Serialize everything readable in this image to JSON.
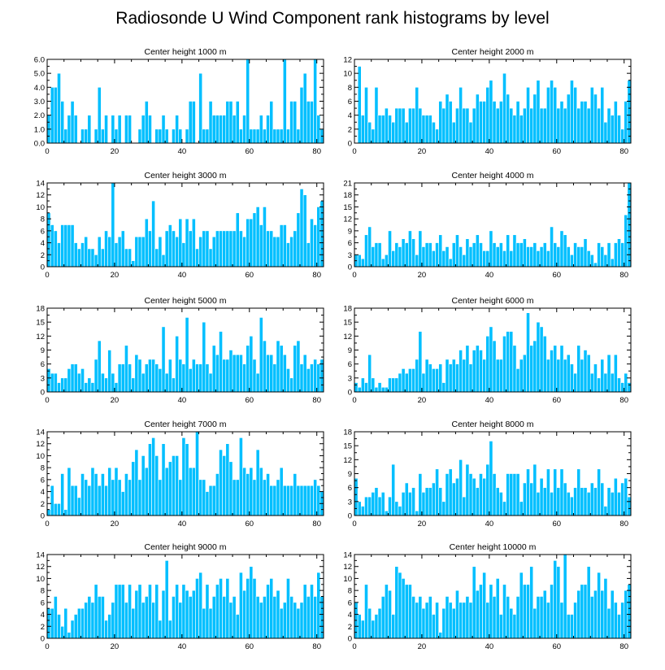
{
  "figure": {
    "title": "Radiosonde U Wind Component rank histograms by level"
  },
  "colors": {
    "bar": "#00bfff",
    "bar_edge": "#ffffff",
    "axis": "#000000",
    "background": "#ffffff"
  },
  "chart_data": [
    {
      "type": "bar",
      "title": "Center height 1000 m",
      "xlim": [
        0,
        82
      ],
      "ylim": [
        0,
        6
      ],
      "xticks": [
        0,
        20,
        40,
        60,
        80
      ],
      "yticks": [
        0,
        1,
        2,
        3,
        4,
        5,
        6
      ],
      "ytick_labels": [
        "0.0",
        "1.0",
        "2.0",
        "3.0",
        "4.0",
        "5.0",
        "6.0"
      ],
      "values": [
        2,
        4,
        4,
        5,
        3,
        1,
        2,
        3,
        2,
        0,
        1,
        1,
        2,
        0,
        1,
        4,
        1,
        2,
        0,
        2,
        1,
        2,
        0,
        2,
        2,
        0,
        0,
        1,
        2,
        3,
        2,
        0,
        1,
        1,
        2,
        1,
        0,
        1,
        2,
        1,
        0,
        1,
        3,
        3,
        0,
        5,
        1,
        1,
        3,
        2,
        2,
        2,
        2,
        3,
        3,
        2,
        3,
        1,
        2,
        6,
        1,
        1,
        1,
        2,
        1,
        2,
        3,
        1,
        1,
        1,
        6,
        1,
        3,
        3,
        1,
        4,
        5,
        3,
        3,
        6,
        2,
        1
      ]
    },
    {
      "type": "bar",
      "title": "Center height 2000 m",
      "xlim": [
        0,
        82
      ],
      "ylim": [
        0,
        12
      ],
      "xticks": [
        0,
        20,
        40,
        60,
        80
      ],
      "yticks": [
        0,
        2,
        4,
        6,
        8,
        10,
        12
      ],
      "ytick_labels": [
        "0",
        "2",
        "4",
        "6",
        "8",
        "10",
        "12"
      ],
      "values": [
        0,
        11,
        4,
        8,
        3,
        2,
        8,
        4,
        4,
        5,
        4,
        3,
        5,
        5,
        5,
        3,
        5,
        5,
        8,
        5,
        4,
        4,
        4,
        3,
        2,
        6,
        5,
        7,
        6,
        3,
        5,
        8,
        5,
        5,
        3,
        5,
        7,
        6,
        6,
        8,
        9,
        6,
        5,
        6,
        10,
        7,
        5,
        4,
        6,
        4,
        5,
        8,
        5,
        7,
        9,
        5,
        5,
        8,
        9,
        8,
        5,
        6,
        5,
        7,
        9,
        8,
        5,
        6,
        6,
        5,
        8,
        7,
        5,
        8,
        3,
        5,
        4,
        6,
        4,
        2,
        6,
        9
      ]
    },
    {
      "type": "bar",
      "title": "Center height 3000 m",
      "xlim": [
        0,
        82
      ],
      "ylim": [
        0,
        14
      ],
      "xticks": [
        0,
        20,
        40,
        60,
        80
      ],
      "yticks": [
        0,
        2,
        4,
        6,
        8,
        10,
        12,
        14
      ],
      "ytick_labels": [
        "0",
        "2",
        "4",
        "6",
        "8",
        "10",
        "12",
        "14"
      ],
      "values": [
        9,
        7,
        6,
        4,
        7,
        7,
        7,
        7,
        4,
        3,
        4,
        5,
        3,
        3,
        2,
        5,
        3,
        6,
        5,
        14,
        4,
        5,
        6,
        3,
        3,
        1,
        5,
        5,
        5,
        8,
        6,
        11,
        3,
        5,
        2,
        6,
        7,
        6,
        5,
        8,
        4,
        8,
        6,
        8,
        3,
        5,
        6,
        6,
        3,
        5,
        6,
        6,
        6,
        6,
        6,
        6,
        9,
        6,
        5,
        8,
        8,
        9,
        10,
        7,
        10,
        6,
        6,
        5,
        5,
        7,
        7,
        4,
        5,
        6,
        9,
        13,
        12,
        4,
        8,
        7,
        10,
        11
      ]
    },
    {
      "type": "bar",
      "title": "Center height 4000 m",
      "xlim": [
        0,
        82
      ],
      "ylim": [
        0,
        21
      ],
      "xticks": [
        0,
        20,
        40,
        60,
        80
      ],
      "yticks": [
        0,
        3,
        6,
        9,
        12,
        15,
        18,
        21
      ],
      "ytick_labels": [
        "0",
        "3",
        "6",
        "9",
        "12",
        "15",
        "18",
        "21"
      ],
      "values": [
        3,
        3,
        2,
        8,
        10,
        5,
        6,
        6,
        2,
        3,
        9,
        4,
        6,
        5,
        7,
        6,
        9,
        7,
        3,
        9,
        5,
        6,
        6,
        4,
        6,
        8,
        4,
        5,
        2,
        6,
        8,
        5,
        3,
        7,
        5,
        6,
        8,
        6,
        4,
        4,
        9,
        6,
        5,
        6,
        4,
        8,
        4,
        8,
        6,
        6,
        7,
        5,
        5,
        6,
        4,
        5,
        6,
        4,
        10,
        6,
        5,
        9,
        8,
        5,
        3,
        6,
        5,
        5,
        7,
        4,
        3,
        1,
        6,
        5,
        3,
        6,
        2,
        6,
        7,
        6,
        13,
        21
      ]
    },
    {
      "type": "bar",
      "title": "Center height 5000 m",
      "xlim": [
        0,
        82
      ],
      "ylim": [
        0,
        18
      ],
      "xticks": [
        0,
        20,
        40,
        60,
        80
      ],
      "yticks": [
        0,
        3,
        6,
        9,
        12,
        15,
        18
      ],
      "ytick_labels": [
        "0",
        "3",
        "6",
        "9",
        "12",
        "15",
        "18"
      ],
      "values": [
        5,
        4,
        4,
        2,
        3,
        3,
        5,
        6,
        6,
        4,
        5,
        2,
        3,
        2,
        7,
        11,
        4,
        3,
        9,
        4,
        2,
        6,
        6,
        10,
        6,
        3,
        8,
        7,
        4,
        6,
        7,
        7,
        6,
        5,
        14,
        4,
        7,
        3,
        12,
        7,
        6,
        16,
        5,
        7,
        6,
        6,
        15,
        6,
        4,
        10,
        8,
        13,
        7,
        7,
        9,
        8,
        8,
        8,
        6,
        10,
        12,
        7,
        4,
        16,
        11,
        8,
        8,
        6,
        11,
        10,
        8,
        5,
        3,
        10,
        11,
        6,
        8,
        5,
        6,
        7,
        6,
        7
      ]
    },
    {
      "type": "bar",
      "title": "Center height 6000 m",
      "xlim": [
        0,
        82
      ],
      "ylim": [
        0,
        18
      ],
      "xticks": [
        0,
        20,
        40,
        60,
        80
      ],
      "yticks": [
        0,
        3,
        6,
        9,
        12,
        15,
        18
      ],
      "ytick_labels": [
        "0",
        "3",
        "6",
        "9",
        "12",
        "15",
        "18"
      ],
      "values": [
        2,
        1,
        3,
        2,
        8,
        3,
        1,
        2,
        1,
        1,
        3,
        3,
        3,
        4,
        5,
        4,
        5,
        5,
        7,
        13,
        4,
        7,
        6,
        5,
        5,
        6,
        2,
        7,
        6,
        7,
        6,
        9,
        7,
        10,
        6,
        9,
        10,
        9,
        7,
        12,
        14,
        11,
        7,
        7,
        12,
        13,
        13,
        10,
        5,
        7,
        8,
        17,
        10,
        11,
        15,
        14,
        12,
        7,
        9,
        10,
        7,
        10,
        7,
        8,
        6,
        4,
        10,
        7,
        9,
        8,
        4,
        6,
        3,
        7,
        4,
        8,
        4,
        8,
        3,
        2,
        4,
        2
      ]
    },
    {
      "type": "bar",
      "title": "Center height 7000 m",
      "xlim": [
        0,
        82
      ],
      "ylim": [
        0,
        14
      ],
      "xticks": [
        0,
        20,
        40,
        60,
        80
      ],
      "yticks": [
        0,
        2,
        4,
        6,
        8,
        10,
        12,
        14
      ],
      "ytick_labels": [
        "0",
        "2",
        "4",
        "6",
        "8",
        "10",
        "12",
        "14"
      ],
      "values": [
        1,
        5,
        2,
        2,
        7,
        1,
        8,
        5,
        5,
        3,
        7,
        6,
        5,
        8,
        7,
        5,
        7,
        5,
        8,
        6,
        8,
        6,
        4,
        7,
        6,
        9,
        11,
        6,
        10,
        8,
        12,
        13,
        10,
        6,
        12,
        8,
        9,
        10,
        10,
        6,
        13,
        12,
        8,
        8,
        14,
        6,
        6,
        4,
        5,
        5,
        7,
        11,
        10,
        12,
        9,
        6,
        6,
        13,
        8,
        7,
        8,
        6,
        11,
        8,
        6,
        7,
        5,
        5,
        6,
        8,
        5,
        5,
        5,
        7,
        5,
        5,
        5,
        5,
        5,
        6,
        5,
        4
      ]
    },
    {
      "type": "bar",
      "title": "Center height 8000 m",
      "xlim": [
        0,
        82
      ],
      "ylim": [
        0,
        18
      ],
      "xticks": [
        0,
        20,
        40,
        60,
        80
      ],
      "yticks": [
        0,
        3,
        6,
        9,
        12,
        15,
        18
      ],
      "ytick_labels": [
        "0",
        "3",
        "6",
        "9",
        "12",
        "15",
        "18"
      ],
      "values": [
        8,
        3,
        2,
        4,
        4,
        5,
        6,
        4,
        5,
        1,
        4,
        11,
        3,
        2,
        5,
        7,
        5,
        6,
        1,
        9,
        5,
        6,
        6,
        7,
        10,
        6,
        3,
        9,
        10,
        7,
        8,
        12,
        4,
        11,
        9,
        8,
        6,
        9,
        8,
        11,
        16,
        9,
        6,
        5,
        3,
        9,
        9,
        9,
        9,
        3,
        7,
        10,
        7,
        11,
        5,
        8,
        6,
        10,
        5,
        10,
        6,
        10,
        7,
        5,
        4,
        6,
        10,
        6,
        6,
        5,
        7,
        6,
        10,
        7,
        2,
        6,
        5,
        8,
        5,
        7,
        8,
        4
      ]
    },
    {
      "type": "bar",
      "title": "Center height 9000 m",
      "xlim": [
        0,
        82
      ],
      "ylim": [
        0,
        14
      ],
      "xticks": [
        0,
        20,
        40,
        60,
        80
      ],
      "yticks": [
        0,
        2,
        4,
        6,
        8,
        10,
        12,
        14
      ],
      "ytick_labels": [
        "0",
        "2",
        "4",
        "6",
        "8",
        "10",
        "12",
        "14"
      ],
      "values": [
        5,
        5,
        7,
        4,
        2,
        5,
        1,
        3,
        4,
        5,
        5,
        6,
        7,
        6,
        9,
        7,
        7,
        3,
        4,
        6,
        9,
        9,
        9,
        6,
        9,
        5,
        8,
        9,
        6,
        7,
        9,
        6,
        9,
        3,
        8,
        13,
        3,
        7,
        9,
        6,
        9,
        8,
        7,
        8,
        10,
        11,
        5,
        9,
        5,
        7,
        9,
        10,
        7,
        10,
        6,
        7,
        4,
        11,
        8,
        10,
        12,
        10,
        7,
        6,
        7,
        9,
        10,
        7,
        8,
        5,
        6,
        10,
        7,
        6,
        5,
        6,
        9,
        7,
        9,
        7,
        11,
        7
      ]
    },
    {
      "type": "bar",
      "title": "Center height 10000 m",
      "xlim": [
        0,
        82
      ],
      "ylim": [
        0,
        14
      ],
      "xticks": [
        0,
        20,
        40,
        60,
        80
      ],
      "yticks": [
        0,
        2,
        4,
        6,
        8,
        10,
        12,
        14
      ],
      "ytick_labels": [
        "0",
        "2",
        "4",
        "6",
        "8",
        "10",
        "12",
        "14"
      ],
      "values": [
        6,
        4,
        3,
        9,
        5,
        3,
        4,
        5,
        7,
        9,
        8,
        4,
        12,
        11,
        10,
        9,
        9,
        7,
        6,
        7,
        5,
        6,
        7,
        4,
        6,
        1,
        5,
        7,
        6,
        5,
        8,
        6,
        6,
        7,
        6,
        12,
        8,
        9,
        11,
        6,
        9,
        7,
        10,
        4,
        9,
        7,
        5,
        4,
        7,
        11,
        9,
        9,
        12,
        5,
        7,
        7,
        8,
        6,
        9,
        13,
        12,
        6,
        14,
        4,
        4,
        6,
        8,
        9,
        9,
        12,
        7,
        8,
        11,
        8,
        10,
        5,
        8,
        6,
        4,
        6,
        8,
        9
      ]
    }
  ]
}
